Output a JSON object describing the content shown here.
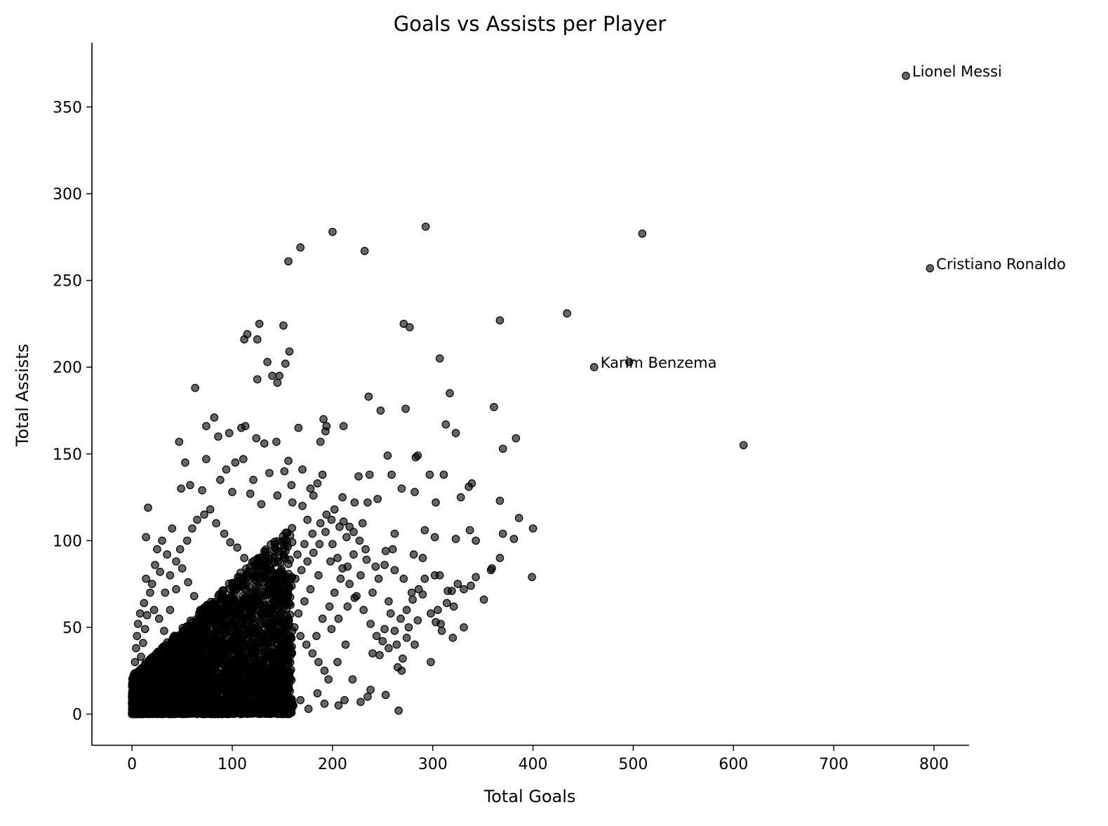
{
  "chart_data": {
    "type": "scatter",
    "title": "Goals vs Assists per Player",
    "xlabel": "Total Goals",
    "ylabel": "Total Assists",
    "xlim": [
      -40,
      835
    ],
    "ylim": [
      -18,
      387
    ],
    "xticks": [
      0,
      100,
      200,
      300,
      400,
      500,
      600,
      700,
      800
    ],
    "yticks": [
      0,
      50,
      100,
      150,
      200,
      250,
      300,
      350
    ],
    "grid": false,
    "legend": "none",
    "point_color": "#000000",
    "point_alpha": 0.6,
    "annotations": [
      {
        "label": "Lionel Messi",
        "x": 772,
        "y": 368
      },
      {
        "label": "Cristiano Ronaldo",
        "x": 796,
        "y": 257
      },
      {
        "label": "Karim Benzema",
        "x": 461,
        "y": 200
      }
    ],
    "dense_cluster": {
      "x_range": [
        0,
        160
      ],
      "y_range": [
        0,
        110
      ],
      "count": 3800
    },
    "points": [
      [
        772,
        368
      ],
      [
        796,
        257
      ],
      [
        461,
        200
      ],
      [
        496,
        203
      ],
      [
        509,
        277
      ],
      [
        610,
        155
      ],
      [
        434,
        231
      ],
      [
        367,
        227
      ],
      [
        293,
        281
      ],
      [
        200,
        278
      ],
      [
        232,
        267
      ],
      [
        168,
        269
      ],
      [
        156,
        261
      ],
      [
        271,
        225
      ],
      [
        277,
        223
      ],
      [
        307,
        205
      ],
      [
        127,
        225
      ],
      [
        151,
        224
      ],
      [
        112,
        216
      ],
      [
        115,
        219
      ],
      [
        125,
        216
      ],
      [
        157,
        209
      ],
      [
        153,
        202
      ],
      [
        135,
        203
      ],
      [
        125,
        193
      ],
      [
        140,
        195
      ],
      [
        145,
        191
      ],
      [
        147,
        195
      ],
      [
        63,
        188
      ],
      [
        236,
        183
      ],
      [
        317,
        185
      ],
      [
        248,
        175
      ],
      [
        273,
        176
      ],
      [
        361,
        177
      ],
      [
        313,
        167
      ],
      [
        323,
        162
      ],
      [
        383,
        159
      ],
      [
        370,
        153
      ],
      [
        82,
        171
      ],
      [
        74,
        166
      ],
      [
        97,
        162
      ],
      [
        86,
        160
      ],
      [
        109,
        165
      ],
      [
        113,
        166
      ],
      [
        124,
        159
      ],
      [
        132,
        156
      ],
      [
        144,
        157
      ],
      [
        156,
        146
      ],
      [
        166,
        165
      ],
      [
        191,
        170
      ],
      [
        194,
        166
      ],
      [
        211,
        166
      ],
      [
        188,
        157
      ],
      [
        193,
        163
      ],
      [
        226,
        137
      ],
      [
        237,
        138
      ],
      [
        255,
        149
      ],
      [
        259,
        138
      ],
      [
        283,
        148
      ],
      [
        285,
        149
      ],
      [
        297,
        138
      ],
      [
        311,
        138
      ],
      [
        336,
        131
      ],
      [
        339,
        133
      ],
      [
        328,
        125
      ],
      [
        303,
        122
      ],
      [
        282,
        128
      ],
      [
        269,
        130
      ],
      [
        245,
        124
      ],
      [
        235,
        122
      ],
      [
        222,
        122
      ],
      [
        210,
        125
      ],
      [
        230,
        110
      ],
      [
        211,
        111
      ],
      [
        217,
        108
      ],
      [
        262,
        104
      ],
      [
        292,
        106
      ],
      [
        302,
        102
      ],
      [
        323,
        101
      ],
      [
        343,
        100
      ],
      [
        337,
        106
      ],
      [
        367,
        123
      ],
      [
        381,
        101
      ],
      [
        370,
        104
      ],
      [
        400,
        107
      ],
      [
        386,
        113
      ],
      [
        359,
        84
      ],
      [
        358,
        83
      ],
      [
        367,
        90
      ],
      [
        399,
        79
      ],
      [
        343,
        79
      ],
      [
        307,
        80
      ],
      [
        302,
        80
      ],
      [
        315,
        71
      ],
      [
        321,
        62
      ],
      [
        331,
        72
      ],
      [
        338,
        74
      ],
      [
        320,
        44
      ],
      [
        351,
        66
      ],
      [
        298,
        30
      ],
      [
        285,
        54
      ],
      [
        274,
        44
      ],
      [
        265,
        27
      ],
      [
        269,
        25
      ],
      [
        266,
        2
      ],
      [
        253,
        11
      ],
      [
        247,
        34
      ],
      [
        240,
        35
      ],
      [
        252,
        49
      ],
      [
        256,
        65
      ],
      [
        262,
        83
      ],
      [
        271,
        78
      ],
      [
        279,
        70
      ],
      [
        290,
        90
      ],
      [
        305,
        60
      ],
      [
        308,
        52
      ],
      [
        290,
        69
      ],
      [
        260,
        95
      ],
      [
        281,
        92
      ],
      [
        253,
        94
      ],
      [
        234,
        89
      ],
      [
        243,
        85
      ],
      [
        228,
        80
      ],
      [
        222,
        67
      ],
      [
        215,
        62
      ],
      [
        206,
        55
      ],
      [
        199,
        49
      ],
      [
        213,
        40
      ],
      [
        205,
        30
      ],
      [
        220,
        20
      ],
      [
        235,
        10
      ],
      [
        238,
        14
      ],
      [
        228,
        7
      ],
      [
        212,
        8
      ],
      [
        206,
        5
      ],
      [
        192,
        6
      ],
      [
        185,
        12
      ],
      [
        176,
        3
      ],
      [
        168,
        8
      ],
      [
        160,
        4
      ],
      [
        155,
        1
      ],
      [
        161,
        5
      ],
      [
        16,
        119
      ],
      [
        14,
        102
      ],
      [
        47,
        157
      ],
      [
        53,
        145
      ],
      [
        74,
        147
      ],
      [
        103,
        145
      ],
      [
        111,
        147
      ],
      [
        121,
        135
      ],
      [
        137,
        139
      ],
      [
        152,
        140
      ],
      [
        159,
        132
      ],
      [
        170,
        141
      ],
      [
        178,
        130
      ],
      [
        185,
        133
      ],
      [
        190,
        138
      ],
      [
        181,
        126
      ],
      [
        202,
        118
      ],
      [
        175,
        112
      ],
      [
        170,
        120
      ],
      [
        160,
        122
      ],
      [
        145,
        126
      ],
      [
        129,
        121
      ],
      [
        118,
        127
      ],
      [
        100,
        128
      ],
      [
        94,
        141
      ],
      [
        88,
        135
      ],
      [
        70,
        129
      ],
      [
        58,
        132
      ],
      [
        49,
        130
      ],
      [
        40,
        107
      ],
      [
        30,
        100
      ],
      [
        25,
        95
      ],
      [
        35,
        92
      ],
      [
        23,
        86
      ],
      [
        28,
        82
      ],
      [
        14,
        78
      ],
      [
        18,
        70
      ],
      [
        12,
        64
      ],
      [
        8,
        58
      ],
      [
        6,
        52
      ],
      [
        5,
        45
      ],
      [
        4,
        38
      ],
      [
        3,
        30
      ],
      [
        2,
        22
      ],
      [
        1,
        15
      ],
      [
        2,
        8
      ],
      [
        0,
        0
      ],
      [
        1,
        3
      ],
      [
        0,
        6
      ],
      [
        3,
        11
      ],
      [
        5,
        17
      ],
      [
        7,
        25
      ],
      [
        9,
        33
      ],
      [
        11,
        41
      ],
      [
        13,
        49
      ],
      [
        15,
        57
      ],
      [
        20,
        75
      ],
      [
        22,
        60
      ],
      [
        27,
        55
      ],
      [
        33,
        70
      ],
      [
        38,
        80
      ],
      [
        44,
        88
      ],
      [
        48,
        95
      ],
      [
        55,
        100
      ],
      [
        60,
        107
      ],
      [
        65,
        112
      ],
      [
        72,
        115
      ],
      [
        78,
        118
      ],
      [
        84,
        110
      ],
      [
        92,
        104
      ],
      [
        98,
        99
      ],
      [
        105,
        96
      ],
      [
        112,
        90
      ],
      [
        118,
        85
      ],
      [
        124,
        80
      ],
      [
        130,
        76
      ],
      [
        137,
        70
      ],
      [
        143,
        66
      ],
      [
        150,
        60
      ],
      [
        156,
        55
      ],
      [
        162,
        50
      ],
      [
        168,
        45
      ],
      [
        174,
        40
      ],
      [
        180,
        35
      ],
      [
        186,
        30
      ],
      [
        192,
        25
      ],
      [
        196,
        20
      ],
      [
        184,
        45
      ],
      [
        190,
        55
      ],
      [
        197,
        62
      ],
      [
        202,
        70
      ],
      [
        208,
        78
      ],
      [
        215,
        85
      ],
      [
        221,
        92
      ],
      [
        198,
        88
      ],
      [
        186,
        80
      ],
      [
        178,
        72
      ],
      [
        172,
        65
      ],
      [
        166,
        58
      ],
      [
        160,
        48
      ],
      [
        154,
        40
      ],
      [
        148,
        32
      ],
      [
        142,
        24
      ],
      [
        136,
        16
      ],
      [
        130,
        8
      ],
      [
        124,
        3
      ],
      [
        118,
        2
      ],
      [
        110,
        5
      ],
      [
        104,
        12
      ],
      [
        98,
        20
      ],
      [
        92,
        28
      ],
      [
        86,
        36
      ],
      [
        80,
        44
      ],
      [
        74,
        52
      ],
      [
        68,
        60
      ],
      [
        62,
        68
      ],
      [
        56,
        76
      ],
      [
        50,
        84
      ],
      [
        44,
        72
      ],
      [
        38,
        60
      ],
      [
        32,
        48
      ],
      [
        26,
        36
      ],
      [
        20,
        24
      ],
      [
        14,
        12
      ],
      [
        10,
        6
      ],
      [
        165,
        92
      ],
      [
        172,
        98
      ],
      [
        180,
        104
      ],
      [
        188,
        110
      ],
      [
        194,
        115
      ],
      [
        200,
        98
      ],
      [
        205,
        90
      ],
      [
        210,
        84
      ],
      [
        217,
        75
      ],
      [
        224,
        68
      ],
      [
        231,
        60
      ],
      [
        238,
        52
      ],
      [
        244,
        45
      ],
      [
        250,
        42
      ],
      [
        256,
        38
      ],
      [
        262,
        48
      ],
      [
        268,
        55
      ],
      [
        274,
        60
      ],
      [
        280,
        66
      ],
      [
        286,
        72
      ],
      [
        292,
        78
      ],
      [
        298,
        58
      ],
      [
        303,
        53
      ],
      [
        309,
        48
      ],
      [
        314,
        64
      ],
      [
        319,
        71
      ],
      [
        325,
        75
      ],
      [
        331,
        50
      ],
      [
        240,
        70
      ],
      [
        246,
        78
      ],
      [
        252,
        86
      ],
      [
        258,
        58
      ],
      [
        264,
        40
      ],
      [
        270,
        32
      ],
      [
        276,
        50
      ],
      [
        282,
        40
      ],
      [
        233,
        95
      ],
      [
        227,
        100
      ],
      [
        221,
        105
      ],
      [
        214,
        102
      ],
      [
        207,
        108
      ],
      [
        199,
        112
      ],
      [
        193,
        105
      ],
      [
        187,
        98
      ],
      [
        181,
        93
      ],
      [
        175,
        88
      ],
      [
        169,
        83
      ],
      [
        163,
        78
      ],
      [
        157,
        73
      ],
      [
        151,
        68
      ],
      [
        145,
        63
      ]
    ]
  }
}
